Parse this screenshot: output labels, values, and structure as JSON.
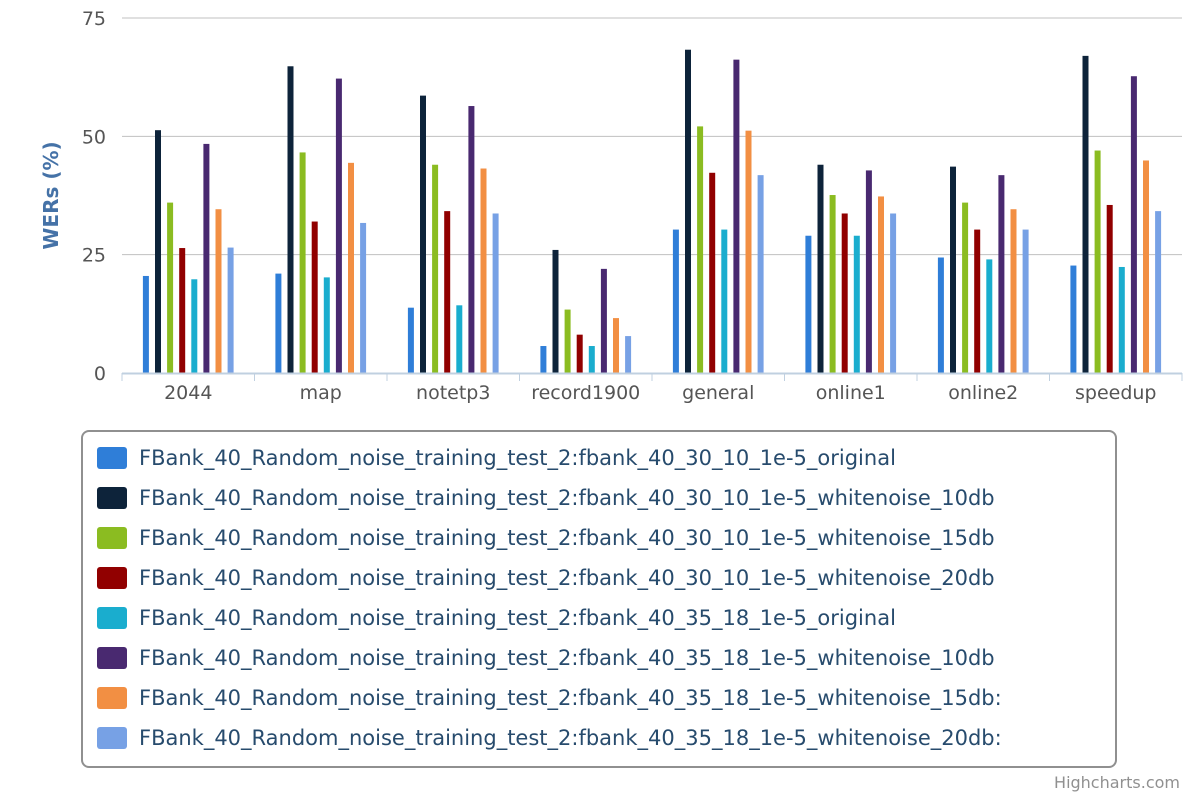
{
  "chart_data": {
    "type": "bar",
    "categories": [
      "2044",
      "map",
      "notetp3",
      "record1900",
      "general",
      "online1",
      "online2",
      "speedup"
    ],
    "ylabel": "WERs (%)",
    "ylim": [
      0,
      75
    ],
    "yticks": [
      0,
      25,
      50,
      75
    ],
    "grid": true,
    "legend_placement": "bottom",
    "series": [
      {
        "name": "FBank_40_Random_noise_training_test_2:fbank_40_30_10_1e-5_original",
        "color": "#2f7ed8",
        "values": [
          20.5,
          21,
          13.8,
          5.7,
          30.3,
          29,
          24.4,
          22.7
        ]
      },
      {
        "name": "FBank_40_Random_noise_training_test_2:fbank_40_30_10_1e-5_whitenoise_10db",
        "color": "#0d233a",
        "values": [
          51.3,
          64.8,
          58.6,
          26,
          68.3,
          44,
          43.6,
          67
        ]
      },
      {
        "name": "FBank_40_Random_noise_training_test_2:fbank_40_30_10_1e-5_whitenoise_15db",
        "color": "#8bbc21",
        "values": [
          36,
          46.6,
          44,
          13.4,
          52.1,
          37.6,
          36,
          47
        ]
      },
      {
        "name": "FBank_40_Random_noise_training_test_2:fbank_40_30_10_1e-5_whitenoise_20db",
        "color": "#910000",
        "values": [
          26.4,
          32,
          34.2,
          8.1,
          42.3,
          33.7,
          30.3,
          35.5
        ]
      },
      {
        "name": "FBank_40_Random_noise_training_test_2:fbank_40_35_18_1e-5_original",
        "color": "#1aadce",
        "values": [
          19.8,
          20.2,
          14.3,
          5.7,
          30.3,
          29,
          24,
          22.4
        ]
      },
      {
        "name": "FBank_40_Random_noise_training_test_2:fbank_40_35_18_1e-5_whitenoise_10db",
        "color": "#492970",
        "values": [
          48.4,
          62.2,
          56.4,
          22,
          66.2,
          42.8,
          41.8,
          62.7
        ]
      },
      {
        "name": "FBank_40_Random_noise_training_test_2:fbank_40_35_18_1e-5_whitenoise_15db:",
        "color": "#f28f43",
        "values": [
          34.6,
          44.4,
          43.2,
          11.6,
          51.2,
          37.3,
          34.6,
          44.9
        ]
      },
      {
        "name": "FBank_40_Random_noise_training_test_2:fbank_40_35_18_1e-5_whitenoise_20db:",
        "color": "#77a1e5",
        "values": [
          26.5,
          31.7,
          33.7,
          7.8,
          41.8,
          33.7,
          30.3,
          34.2
        ]
      }
    ]
  },
  "credits": "Highcharts.com"
}
